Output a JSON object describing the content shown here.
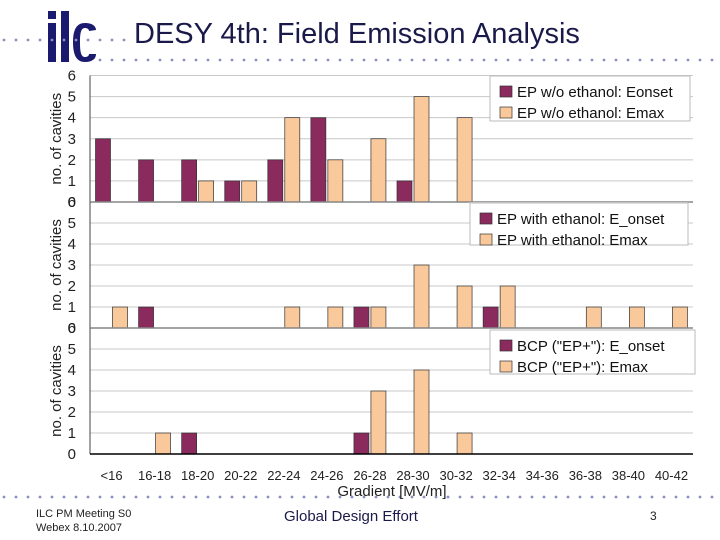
{
  "slide": {
    "title": "DESY 4th: Field Emission Analysis",
    "logo_text": "ilc",
    "footer_line1": "ILC PM Meeting S0",
    "footer_line2": "Webex 8.10.2007",
    "footer_center": "Global Design Effort",
    "page_number": "3"
  },
  "colors": {
    "onset": "#8b2a5c",
    "max": "#f9c89b",
    "title": "#1a1a4a",
    "dots": "#8a8fc0",
    "grid": "#c8c8c8"
  },
  "chart_data": [
    {
      "type": "bar",
      "categories": [
        "<16",
        "16-18",
        "18-20",
        "20-22",
        "22-24",
        "24-26",
        "26-28",
        "28-30",
        "30-32",
        "32-34",
        "34-36",
        "36-38",
        "38-40",
        "40-42"
      ],
      "ylabel": "no. of cavities",
      "yticks": [
        "0",
        "1",
        "2",
        "3",
        "4",
        "5",
        "6"
      ],
      "ylim": [
        0,
        6
      ],
      "legend_position": "top-right",
      "series": [
        {
          "name": "EP w/o ethanol: Eonset",
          "color_key": "onset",
          "values": [
            3,
            2,
            2,
            1,
            2,
            4,
            0,
            1,
            0,
            0,
            0,
            0,
            0,
            0
          ]
        },
        {
          "name": "EP w/o ethanol: Emax",
          "color_key": "max",
          "values": [
            0,
            0,
            1,
            1,
            4,
            2,
            3,
            5,
            4,
            0,
            0,
            0,
            0,
            0
          ]
        }
      ]
    },
    {
      "type": "bar",
      "categories": [
        "<16",
        "16-18",
        "18-20",
        "20-22",
        "22-24",
        "24-26",
        "26-28",
        "28-30",
        "30-32",
        "32-34",
        "34-36",
        "36-38",
        "38-40",
        "40-42"
      ],
      "ylabel": "no. of cavities",
      "yticks": [
        "0",
        "1",
        "2",
        "3",
        "4",
        "5",
        "6"
      ],
      "ylim": [
        0,
        6
      ],
      "legend_position": "top-right",
      "series": [
        {
          "name": "EP with ethanol: E_onset",
          "color_key": "onset",
          "values": [
            0,
            1,
            0,
            0,
            0,
            0,
            1,
            0,
            0,
            1,
            0,
            0,
            0,
            0
          ]
        },
        {
          "name": "EP with ethanol: Emax",
          "color_key": "max",
          "values": [
            1,
            0,
            0,
            0,
            1,
            1,
            1,
            3,
            2,
            2,
            0,
            1,
            1,
            1
          ]
        }
      ]
    },
    {
      "type": "bar",
      "categories": [
        "<16",
        "16-18",
        "18-20",
        "20-22",
        "22-24",
        "24-26",
        "26-28",
        "28-30",
        "30-32",
        "32-34",
        "34-36",
        "36-38",
        "38-40",
        "40-42"
      ],
      "xlabel": "Gradient [MV/m]",
      "ylabel": "no. of cavities",
      "yticks": [
        "0",
        "1",
        "2",
        "3",
        "4",
        "5",
        "6"
      ],
      "ylim": [
        0,
        6
      ],
      "legend_position": "top-right",
      "series": [
        {
          "name": "BCP (\"EP+\"): E_onset",
          "color_key": "onset",
          "values": [
            0,
            0,
            1,
            0,
            0,
            0,
            1,
            0,
            0,
            0,
            0,
            0,
            0,
            0
          ]
        },
        {
          "name": "BCP (\"EP+\"): Emax",
          "color_key": "max",
          "values": [
            0,
            1,
            0,
            0,
            0,
            0,
            3,
            4,
            1,
            0,
            0,
            0,
            0,
            0
          ]
        }
      ]
    }
  ]
}
